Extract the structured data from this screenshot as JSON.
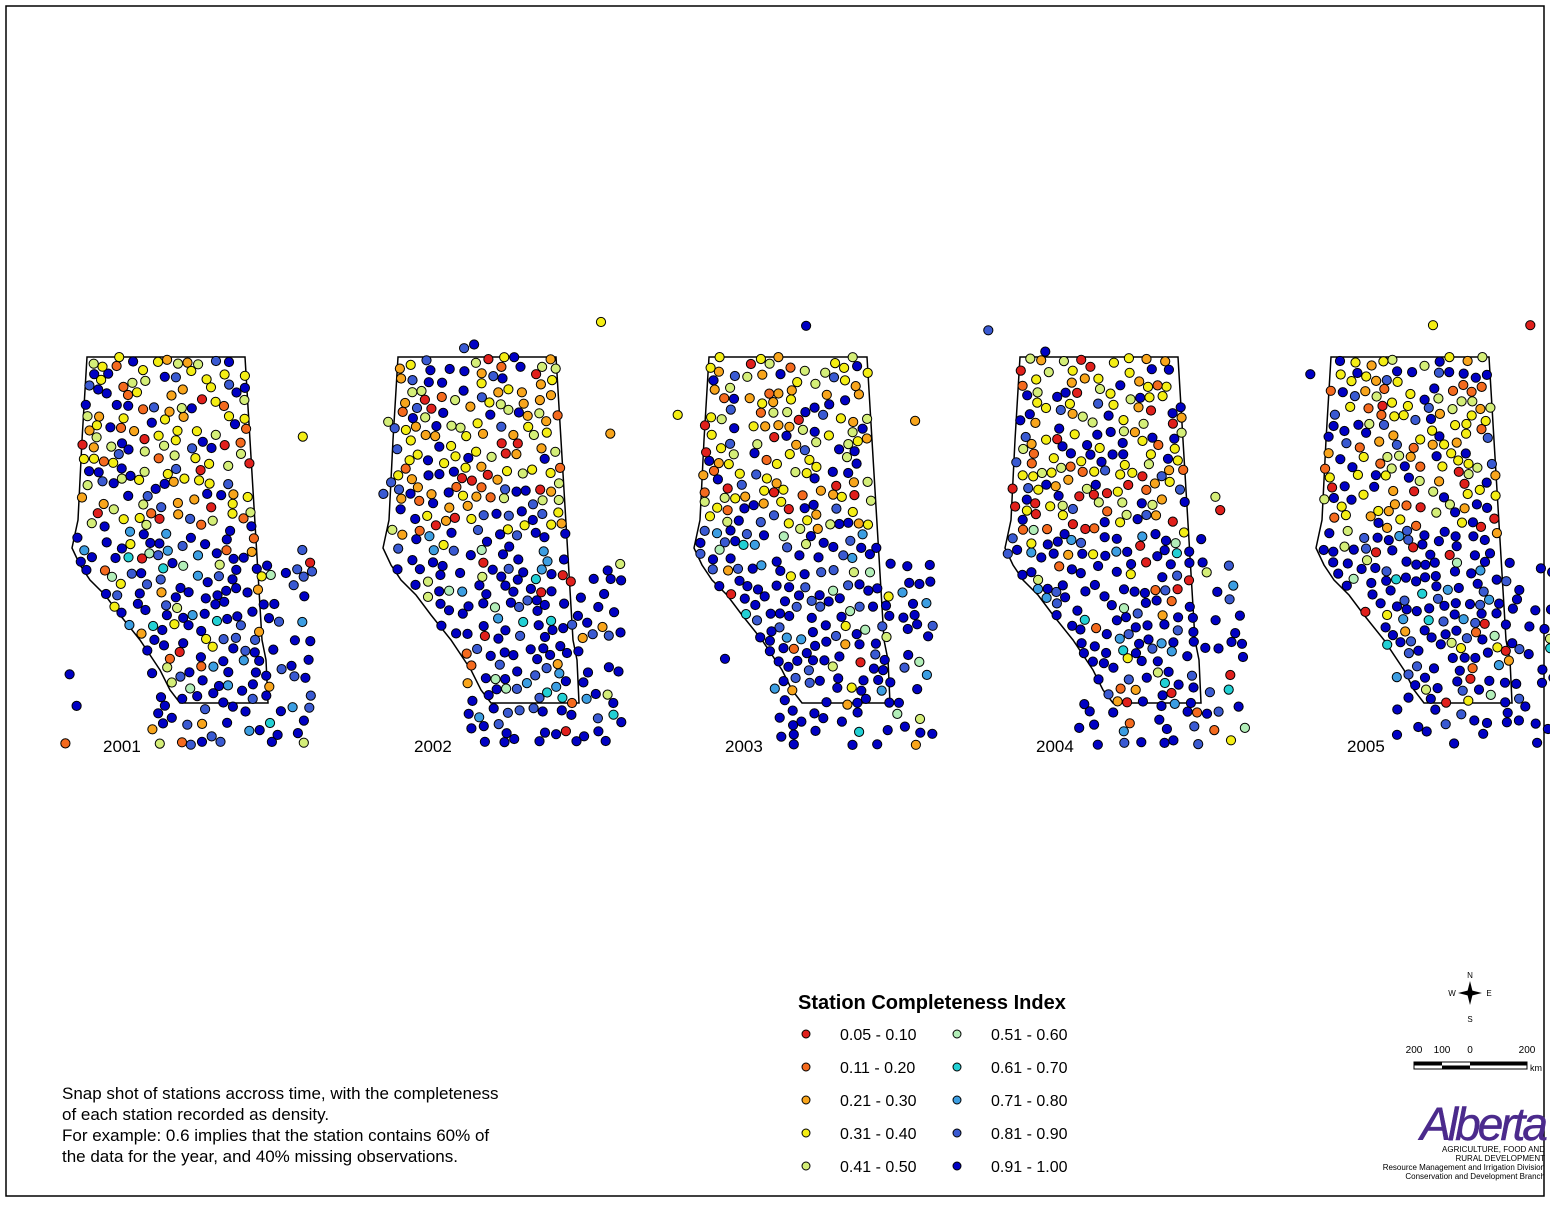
{
  "maps": [
    {
      "year": "2001"
    },
    {
      "year": "2002"
    },
    {
      "year": "2003"
    },
    {
      "year": "2004"
    },
    {
      "year": "2005"
    }
  ],
  "legend": {
    "title": "Station Completeness Index",
    "classes": [
      {
        "label": "0.05 - 0.10",
        "color": "#e0201c"
      },
      {
        "label": "0.11 - 0.20",
        "color": "#f46a1e"
      },
      {
        "label": "0.21 - 0.30",
        "color": "#f8a51c"
      },
      {
        "label": "0.31 - 0.40",
        "color": "#f4ee14"
      },
      {
        "label": "0.41 - 0.50",
        "color": "#d4ee78"
      },
      {
        "label": "0.51 - 0.60",
        "color": "#b2eeb8"
      },
      {
        "label": "0.61 - 0.70",
        "color": "#22d0d4"
      },
      {
        "label": "0.71 - 0.80",
        "color": "#3c9ee2"
      },
      {
        "label": "0.81 - 0.90",
        "color": "#3a5ad2"
      },
      {
        "label": "0.91 - 1.00",
        "color": "#0000c4"
      }
    ]
  },
  "description": [
    "Snap shot of stations accross time, with the completeness",
    "of each station recorded as density.",
    "For example: 0.6 implies that the station contains 60% of",
    "the data for the year, and 40% missing observations."
  ],
  "compass": {
    "n": "N",
    "w": "W",
    "e": "E",
    "s": "S"
  },
  "scale": {
    "labels": [
      "200",
      "100",
      "0",
      "200"
    ],
    "unit": "km"
  },
  "logo": {
    "name": "Alberta",
    "lines": [
      "AGRICULTURE, FOOD AND",
      "RURAL DEVELOPMENT",
      "Resource Management and Irrigation Division",
      "Conservation and Development Branch"
    ]
  }
}
